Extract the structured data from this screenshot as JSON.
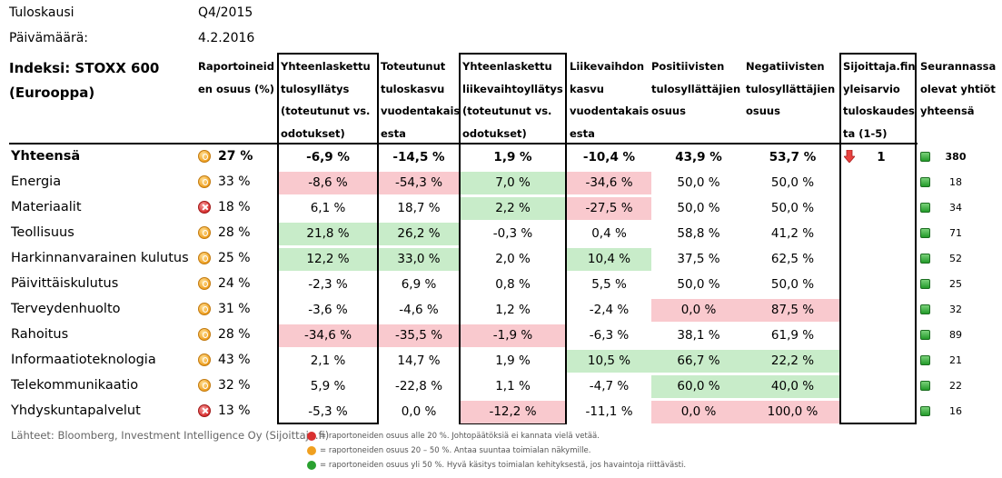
{
  "meta": {
    "season_label": "Tuloskausi",
    "season_value": "Q4/2015",
    "date_label": "Päivämäärä:",
    "date_value": "4.2.2016"
  },
  "index_title": "Indeksi: STOXX 600\n(Eurooppa)",
  "headers": {
    "reported": "Raportoineid\nen osuus (%)",
    "eps_surprise": "Yhteenlaskettu\ntulosyllätys\n(toteutunut vs.\nodotukset)",
    "eps_growth": "Toteutunut\ntuloskasvu\nvuodentakais\nesta",
    "rev_surprise": "Yhteenlaskettu\nliikevaihtoyllätys\n(toteutunut vs.\nodotukset)",
    "rev_growth": "Liikevaihdon\nkasvu\nvuodentakais\nesta",
    "positive": "Positiivisten\ntulosyllättäjien\nosuus",
    "negative": "Negatiivisten\ntulosyllättäjien\nosuus",
    "estimate": "Sijoittaja.fin\nyleisarvio\ntuloskaudes\nta (1-5)",
    "companies": "Seurannassa\nolevat yhtiöt\nyhteensä"
  },
  "colors": {
    "positive_bg": "#c8ecc9",
    "negative_bg": "#f9c9ce",
    "status_red": "#d83030",
    "status_orange": "#f0a020",
    "status_green": "#2aa130"
  },
  "total": {
    "name": "Yhteensä",
    "status": "orange",
    "reported": "27 %",
    "eps_surprise": "-6,9 %",
    "eps_growth": "-14,5 %",
    "rev_surprise": "1,9 %",
    "rev_growth": "-10,4 %",
    "positive": "43,9 %",
    "negative": "53,7 %",
    "estimate_icon": "down-arrow-icon",
    "estimate": "1",
    "companies": "380"
  },
  "rows": [
    {
      "name": "Energia",
      "status": "orange",
      "reported": "33 %",
      "eps_surprise": "-8,6 %",
      "eps_surprise_hl": "neg",
      "eps_growth": "-54,3 %",
      "eps_growth_hl": "neg",
      "rev_surprise": "7,0 %",
      "rev_surprise_hl": "pos",
      "rev_growth": "-34,6 %",
      "rev_growth_hl": "neg",
      "positive": "50,0 %",
      "positive_hl": "",
      "negative": "50,0 %",
      "negative_hl": "",
      "companies": "18"
    },
    {
      "name": "Materiaalit",
      "status": "red",
      "reported": "18 %",
      "eps_surprise": "6,1 %",
      "eps_surprise_hl": "",
      "eps_growth": "18,7 %",
      "eps_growth_hl": "",
      "rev_surprise": "2,2 %",
      "rev_surprise_hl": "pos",
      "rev_growth": "-27,5 %",
      "rev_growth_hl": "neg",
      "positive": "50,0 %",
      "positive_hl": "",
      "negative": "50,0 %",
      "negative_hl": "",
      "companies": "34"
    },
    {
      "name": "Teollisuus",
      "status": "orange",
      "reported": "28 %",
      "eps_surprise": "21,8 %",
      "eps_surprise_hl": "pos",
      "eps_growth": "26,2 %",
      "eps_growth_hl": "pos",
      "rev_surprise": "-0,3 %",
      "rev_surprise_hl": "",
      "rev_growth": "0,4 %",
      "rev_growth_hl": "",
      "positive": "58,8 %",
      "positive_hl": "",
      "negative": "41,2 %",
      "negative_hl": "",
      "companies": "71"
    },
    {
      "name": "Harkinnanvarainen kulutus",
      "status": "orange",
      "reported": "25 %",
      "eps_surprise": "12,2 %",
      "eps_surprise_hl": "pos",
      "eps_growth": "33,0 %",
      "eps_growth_hl": "pos",
      "rev_surprise": "2,0 %",
      "rev_surprise_hl": "",
      "rev_growth": "10,4 %",
      "rev_growth_hl": "pos",
      "positive": "37,5 %",
      "positive_hl": "",
      "negative": "62,5 %",
      "negative_hl": "",
      "companies": "52"
    },
    {
      "name": "Päivittäiskulutus",
      "status": "orange",
      "reported": "24 %",
      "eps_surprise": "-2,3 %",
      "eps_surprise_hl": "",
      "eps_growth": "6,9 %",
      "eps_growth_hl": "",
      "rev_surprise": "0,8 %",
      "rev_surprise_hl": "",
      "rev_growth": "5,5 %",
      "rev_growth_hl": "",
      "positive": "50,0 %",
      "positive_hl": "",
      "negative": "50,0 %",
      "negative_hl": "",
      "companies": "25"
    },
    {
      "name": "Terveydenhuolto",
      "status": "orange",
      "reported": "31 %",
      "eps_surprise": "-3,6 %",
      "eps_surprise_hl": "",
      "eps_growth": "-4,6 %",
      "eps_growth_hl": "",
      "rev_surprise": "1,2 %",
      "rev_surprise_hl": "",
      "rev_growth": "-2,4 %",
      "rev_growth_hl": "",
      "positive": "0,0 %",
      "positive_hl": "neg",
      "negative": "87,5 %",
      "negative_hl": "neg",
      "companies": "32"
    },
    {
      "name": "Rahoitus",
      "status": "orange",
      "reported": "28 %",
      "eps_surprise": "-34,6 %",
      "eps_surprise_hl": "neg",
      "eps_growth": "-35,5 %",
      "eps_growth_hl": "neg",
      "rev_surprise": "-1,9 %",
      "rev_surprise_hl": "neg",
      "rev_growth": "-6,3 %",
      "rev_growth_hl": "",
      "positive": "38,1 %",
      "positive_hl": "",
      "negative": "61,9 %",
      "negative_hl": "",
      "companies": "89"
    },
    {
      "name": "Informaatioteknologia",
      "status": "orange",
      "reported": "43 %",
      "eps_surprise": "2,1 %",
      "eps_surprise_hl": "",
      "eps_growth": "14,7 %",
      "eps_growth_hl": "",
      "rev_surprise": "1,9 %",
      "rev_surprise_hl": "",
      "rev_growth": "10,5 %",
      "rev_growth_hl": "pos",
      "positive": "66,7 %",
      "positive_hl": "pos",
      "negative": "22,2 %",
      "negative_hl": "pos",
      "companies": "21"
    },
    {
      "name": "Telekommunikaatio",
      "status": "orange",
      "reported": "32 %",
      "eps_surprise": "5,9 %",
      "eps_surprise_hl": "",
      "eps_growth": "-22,8 %",
      "eps_growth_hl": "",
      "rev_surprise": "1,1 %",
      "rev_surprise_hl": "",
      "rev_growth": "-4,7 %",
      "rev_growth_hl": "",
      "positive": "60,0 %",
      "positive_hl": "pos",
      "negative": "40,0 %",
      "negative_hl": "pos",
      "companies": "22"
    },
    {
      "name": "Yhdyskuntapalvelut",
      "status": "red",
      "reported": "13 %",
      "eps_surprise": "-5,3 %",
      "eps_surprise_hl": "",
      "eps_growth": "0,0 %",
      "eps_growth_hl": "",
      "rev_surprise": "-12,2 %",
      "rev_surprise_hl": "neg",
      "rev_growth": "-11,1 %",
      "rev_growth_hl": "",
      "positive": "0,0 %",
      "positive_hl": "neg",
      "negative": "100,0 %",
      "negative_hl": "neg",
      "companies": "16"
    }
  ],
  "footer": {
    "sources": "Lähteet: Bloomberg, Investment Intelligence Oy (Sijoittaja.fi)",
    "legend": [
      {
        "color": "red",
        "text": "= raportoneiden osuus alle 20 %. Johtopäätöksiä ei kannata vielä vetää."
      },
      {
        "color": "orange",
        "text": "= raportoneiden osuus 20 – 50 %. Antaa suuntaa toimialan näkymille."
      },
      {
        "color": "green",
        "text": "= raportoneiden osuus yli 50 %. Hyvä käsitys toimialan kehityksestä, jos havaintoja riittävästi."
      }
    ]
  }
}
